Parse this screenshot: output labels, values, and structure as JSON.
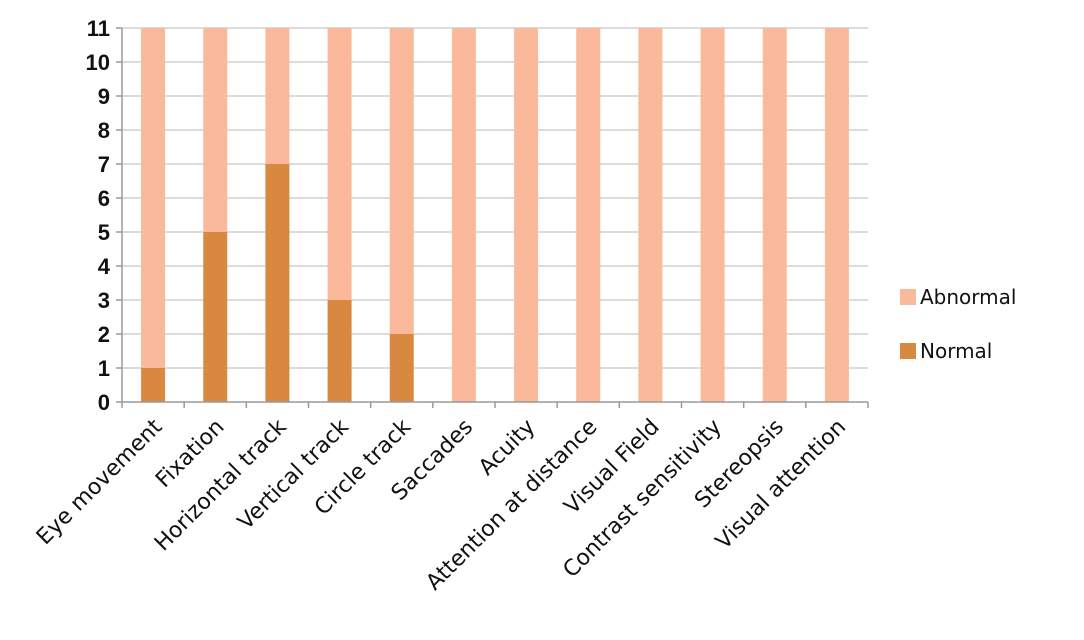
{
  "chart_data": {
    "type": "bar",
    "stacked": true,
    "categories": [
      "Eye movement",
      "Fixation",
      "Horizontal track",
      "Vertical track",
      "Circle track",
      "Saccades",
      "Acuity",
      "Attention at distance",
      "Visual Field",
      "Contrast sensitivity",
      "Stereopsis",
      "Visual attention"
    ],
    "series": [
      {
        "name": "Normal",
        "color": "#d98840",
        "values": [
          1,
          5,
          7,
          3,
          2,
          0,
          0,
          0,
          0,
          0,
          0,
          0
        ]
      },
      {
        "name": "Abnormal",
        "color": "#f9b99a",
        "values": [
          10,
          6,
          4,
          8,
          9,
          11,
          11,
          11,
          11,
          11,
          11,
          11
        ]
      }
    ],
    "ylim": [
      0,
      11
    ],
    "yticks": [
      0,
      1,
      2,
      3,
      4,
      5,
      6,
      7,
      8,
      9,
      10,
      11
    ],
    "grid": true,
    "legend": {
      "position": "right",
      "entries": [
        "Abnormal",
        "Normal"
      ]
    },
    "title": "",
    "xlabel": "",
    "ylabel": ""
  }
}
